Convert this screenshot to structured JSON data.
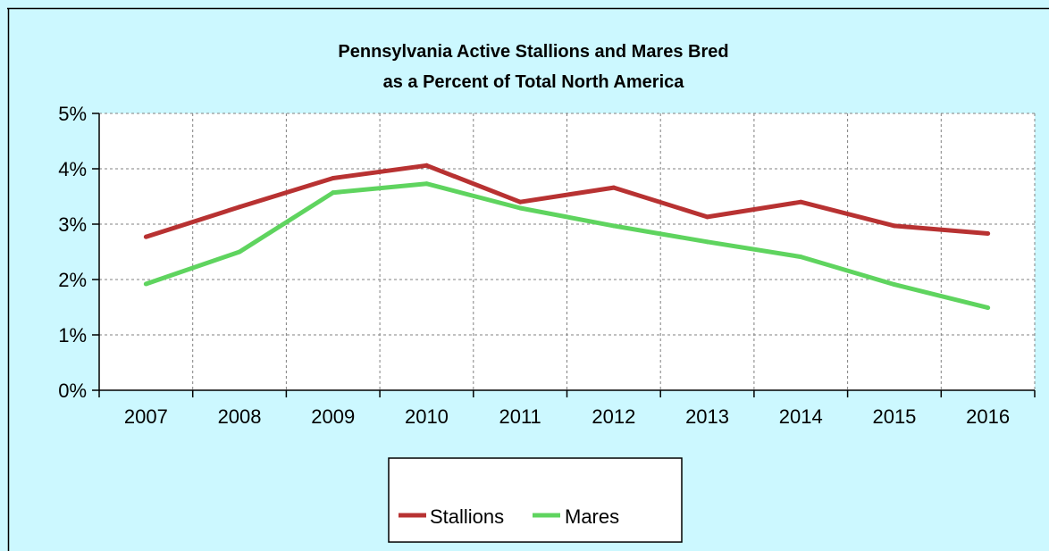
{
  "chart_data": {
    "type": "line",
    "title_lines": [
      "Pennsylvania Active Stallions and Mares Bred",
      "as a Percent of Total North America"
    ],
    "xlabel": "",
    "ylabel": "",
    "categories": [
      "2007",
      "2008",
      "2009",
      "2010",
      "2011",
      "2012",
      "2013",
      "2014",
      "2015",
      "2016"
    ],
    "ylim": [
      0,
      5
    ],
    "y_ticks": [
      {
        "value": 0,
        "label": "0%"
      },
      {
        "value": 1,
        "label": "1%"
      },
      {
        "value": 2,
        "label": "2%"
      },
      {
        "value": 3,
        "label": "3%"
      },
      {
        "value": 4,
        "label": "4%"
      },
      {
        "value": 5,
        "label": "5%"
      }
    ],
    "grid": true,
    "legend_position": "bottom",
    "series": [
      {
        "name": "Stallions",
        "color": "#B83232",
        "values": [
          2.77,
          3.31,
          3.83,
          4.06,
          3.4,
          3.66,
          3.13,
          3.4,
          2.97,
          2.83
        ]
      },
      {
        "name": "Mares",
        "color": "#5FD45F",
        "values": [
          1.92,
          2.5,
          3.57,
          3.73,
          3.29,
          2.97,
          2.68,
          2.41,
          1.91,
          1.49
        ]
      }
    ],
    "colors": {
      "background": "#CCF8FF",
      "plot_area": "#FFFFFF",
      "frame": "#000000"
    }
  }
}
